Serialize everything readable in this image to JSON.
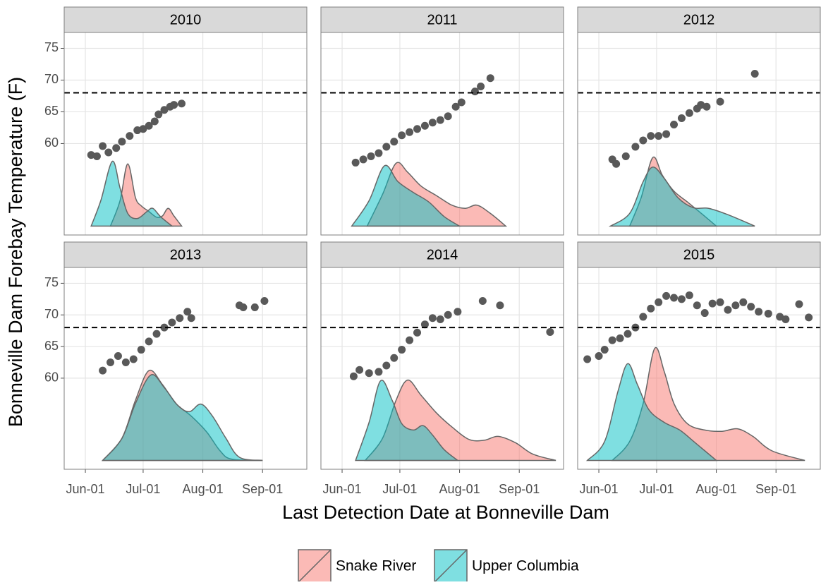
{
  "chart_data": {
    "type": "density",
    "xlabel": "Last Detection Date at Bonneville Dam",
    "ylabel": "Bonneville Dam Forebay Temperature (F)",
    "xlim": [
      "May-21",
      "Sep-24"
    ],
    "xticks": [
      "Jun-01",
      "Jul-01",
      "Aug-01",
      "Sep-01"
    ],
    "ylim": [
      45.6,
      77.5
    ],
    "yticks": [
      60,
      65,
      70,
      75
    ],
    "hline": 68,
    "grid": true,
    "legend": "bottom",
    "point_color": "#595959",
    "series": [
      {
        "name": "Snake River",
        "color": "#f8766d"
      },
      {
        "name": "Upper Columbia",
        "color": "#00bfc4"
      }
    ],
    "panels": [
      {
        "title": "2010",
        "points": {
          "x": [
            "Jun-04",
            "Jun-07",
            "Jun-10",
            "Jun-13",
            "Jun-17",
            "Jun-20",
            "Jun-24",
            "Jun-28",
            "Jul-01",
            "Jul-04",
            "Jul-07",
            "Jul-09",
            "Jul-12",
            "Jul-15",
            "Jul-17",
            "Jul-21"
          ],
          "values": [
            58.2,
            58,
            59.6,
            58.6,
            59.3,
            60.3,
            61.2,
            62.1,
            62.3,
            62.8,
            63.5,
            64.6,
            65.3,
            65.8,
            66.1,
            66.3
          ]
        },
        "densities": [
          {
            "x": [
              "Jun-14",
              "Jun-19",
              "Jun-23",
              "Jun-27",
              "Jun-30",
              "Jul-04",
              "Jul-08",
              "Jul-11",
              "Jul-14",
              "Jul-17",
              "Jul-21"
            ],
            "values": [
              47,
              51,
              56.8,
              51.5,
              50.2,
              49.3,
              48.4,
              48.6,
              49.8,
              48.6,
              47
            ]
          },
          {
            "x": [
              "Jun-04",
              "Jun-09",
              "Jun-15",
              "Jun-19",
              "Jun-23",
              "Jun-28",
              "Jul-03",
              "Jul-06",
              "Jul-10",
              "Jul-16"
            ],
            "values": [
              47,
              51,
              57.2,
              53,
              49,
              48.2,
              49.3,
              49.8,
              48.5,
              47
            ]
          }
        ]
      },
      {
        "title": "2011",
        "points": {
          "x": [
            "Jun-08",
            "Jun-12",
            "Jun-16",
            "Jun-20",
            "Jun-24",
            "Jun-28",
            "Jul-02",
            "Jul-06",
            "Jul-10",
            "Jul-14",
            "Jul-18",
            "Jul-22",
            "Jul-26",
            "Jul-30",
            "Aug-02",
            "Aug-09",
            "Aug-12",
            "Aug-17"
          ],
          "values": [
            57,
            57.5,
            58,
            58.5,
            59.5,
            60.3,
            61.3,
            61.8,
            62.3,
            62.8,
            63.3,
            63.7,
            64.3,
            65.8,
            66.5,
            68.2,
            69,
            70.3
          ]
        },
        "densities": [
          {
            "x": [
              "Jun-14",
              "Jun-22",
              "Jun-29",
              "Jul-05",
              "Jul-12",
              "Jul-20",
              "Jul-28",
              "Aug-04",
              "Aug-10",
              "Aug-17",
              "Aug-25"
            ],
            "values": [
              47,
              52,
              56.9,
              55.5,
              53.3,
              51.8,
              50.3,
              49.8,
              50.3,
              49,
              47
            ]
          },
          {
            "x": [
              "Jun-06",
              "Jun-15",
              "Jun-23",
              "Jun-30",
              "Jul-08",
              "Jul-16",
              "Jul-24",
              "Aug-01"
            ],
            "values": [
              47,
              51,
              56.5,
              54,
              52.3,
              50.8,
              48.5,
              47
            ]
          }
        ]
      },
      {
        "title": "2012",
        "points": {
          "x": [
            "Jun-08",
            "Jun-10",
            "Jun-15",
            "Jun-20",
            "Jun-24",
            "Jun-28",
            "Jul-02",
            "Jul-06",
            "Jul-10",
            "Jul-14",
            "Jul-18",
            "Jul-22",
            "Jul-24",
            "Jul-27",
            "Aug-03",
            "Aug-21"
          ],
          "values": [
            57.5,
            56.8,
            58,
            59.5,
            60.5,
            61.2,
            61.2,
            61.5,
            63,
            64,
            64.8,
            65.5,
            66.1,
            65.8,
            66.6,
            71
          ]
        },
        "densities": [
          {
            "x": [
              "Jun-17",
              "Jun-23",
              "Jun-29",
              "Jul-04",
              "Jul-10",
              "Jul-17",
              "Jul-25",
              "Aug-01"
            ],
            "values": [
              47,
              51.5,
              57.8,
              55,
              52.5,
              50.8,
              48.8,
              47
            ]
          },
          {
            "x": [
              "Jun-07",
              "Jun-17",
              "Jun-24",
              "Jun-29",
              "Jul-05",
              "Jul-12",
              "Jul-20",
              "Jul-28",
              "Aug-07",
              "Aug-21"
            ],
            "values": [
              47,
              49,
              54,
              56.3,
              54.5,
              51.5,
              49.9,
              49.8,
              48.8,
              47
            ]
          }
        ]
      },
      {
        "title": "2013",
        "points": {
          "x": [
            "Jun-10",
            "Jun-14",
            "Jun-18",
            "Jun-22",
            "Jun-26",
            "Jun-30",
            "Jul-04",
            "Jul-08",
            "Jul-12",
            "Jul-16",
            "Jul-20",
            "Jul-24",
            "Jul-26",
            "Aug-20",
            "Aug-22",
            "Aug-28",
            "Sep-02"
          ],
          "values": [
            61.2,
            62.5,
            63.5,
            62.5,
            63,
            64.5,
            65.8,
            67,
            68,
            68.8,
            69.5,
            70.5,
            69.5,
            71.5,
            71.2,
            71.2,
            72.2
          ]
        },
        "densities": [
          {
            "x": [
              "Jun-10",
              "Jun-20",
              "Jun-27",
              "Jul-04",
              "Jul-11",
              "Jul-18",
              "Jul-26",
              "Aug-03",
              "Aug-10",
              "Aug-16",
              "Sep-01"
            ],
            "values": [
              47,
              50.5,
              56.5,
              61.2,
              59,
              56,
              54,
              51.5,
              48.5,
              47.2,
              47
            ]
          },
          {
            "x": [
              "Jun-10",
              "Jun-20",
              "Jun-27",
              "Jul-05",
              "Jul-12",
              "Jul-19",
              "Jul-25",
              "Jul-31",
              "Aug-06",
              "Aug-13",
              "Aug-20",
              "Sep-01"
            ],
            "values": [
              47,
              50.5,
              56,
              60.5,
              58.5,
              55.7,
              54.7,
              55.9,
              54,
              50.5,
              47.5,
              47
            ]
          }
        ]
      },
      {
        "title": "2014",
        "points": {
          "x": [
            "Jun-07",
            "Jun-10",
            "Jun-15",
            "Jun-20",
            "Jun-24",
            "Jun-28",
            "Jul-02",
            "Jul-06",
            "Jul-10",
            "Jul-14",
            "Jul-18",
            "Jul-22",
            "Jul-26",
            "Jul-31",
            "Aug-13",
            "Aug-22",
            "Sep-17"
          ],
          "values": [
            60.3,
            61.3,
            60.8,
            61,
            62,
            63.2,
            64.5,
            66,
            67.2,
            68.5,
            69.5,
            69.3,
            70,
            70.5,
            72.2,
            71.5,
            67.3
          ]
        },
        "densities": [
          {
            "x": [
              "Jun-13",
              "Jun-22",
              "Jun-29",
              "Jul-05",
              "Jul-12",
              "Jul-20",
              "Jul-28",
              "Aug-06",
              "Aug-14",
              "Aug-21",
              "Aug-30",
              "Sep-08",
              "Sep-20"
            ],
            "values": [
              47,
              50.5,
              56.5,
              59.7,
              57.3,
              54.5,
              52.3,
              50.3,
              50.2,
              50.8,
              49.8,
              48,
              47
            ]
          },
          {
            "x": [
              "Jun-08",
              "Jun-15",
              "Jun-21",
              "Jun-27",
              "Jul-02",
              "Jul-08",
              "Jul-13",
              "Jul-18",
              "Jul-24",
              "Jul-31"
            ],
            "values": [
              47,
              53,
              59.6,
              56.5,
              52.8,
              51.8,
              52.5,
              51,
              48.7,
              47
            ]
          }
        ]
      },
      {
        "title": "2015",
        "points": {
          "x": [
            "May-26",
            "Jun-01",
            "Jun-04",
            "Jun-08",
            "Jun-12",
            "Jun-16",
            "Jun-20",
            "Jun-24",
            "Jun-28",
            "Jul-02",
            "Jul-06",
            "Jul-10",
            "Jul-14",
            "Jul-18",
            "Jul-22",
            "Jul-26",
            "Jul-30",
            "Aug-03",
            "Aug-07",
            "Aug-11",
            "Aug-15",
            "Aug-19",
            "Aug-23",
            "Aug-28",
            "Sep-03",
            "Sep-06",
            "Sep-13",
            "Sep-18"
          ],
          "values": [
            63,
            63.5,
            64.5,
            66,
            66.3,
            67,
            68,
            69.7,
            71,
            72,
            73,
            72.7,
            72.5,
            73.1,
            71.5,
            70.3,
            71.8,
            72,
            70.8,
            71.5,
            72,
            71.3,
            70.5,
            70.2,
            69.7,
            69.3,
            71.7,
            69.6
          ]
        },
        "densities": [
          {
            "x": [
              "Jun-08",
              "Jun-17",
              "Jun-24",
              "Jun-30",
              "Jul-05",
              "Jul-10",
              "Jul-17",
              "Jul-26",
              "Aug-04",
              "Aug-12",
              "Aug-20",
              "Aug-30",
              "Sep-16"
            ],
            "values": [
              47,
              50,
              56,
              64.7,
              61,
              56,
              52.8,
              51.8,
              51.6,
              52,
              50.8,
              48.5,
              47
            ]
          },
          {
            "x": [
              "May-26",
              "Jun-04",
              "Jun-11",
              "Jun-16",
              "Jun-21",
              "Jun-27",
              "Jul-05",
              "Jul-13",
              "Jul-21",
              "Aug-01"
            ],
            "values": [
              47,
              50,
              58,
              62.3,
              59,
              55,
              53,
              51.8,
              49.8,
              47
            ]
          }
        ]
      }
    ]
  }
}
